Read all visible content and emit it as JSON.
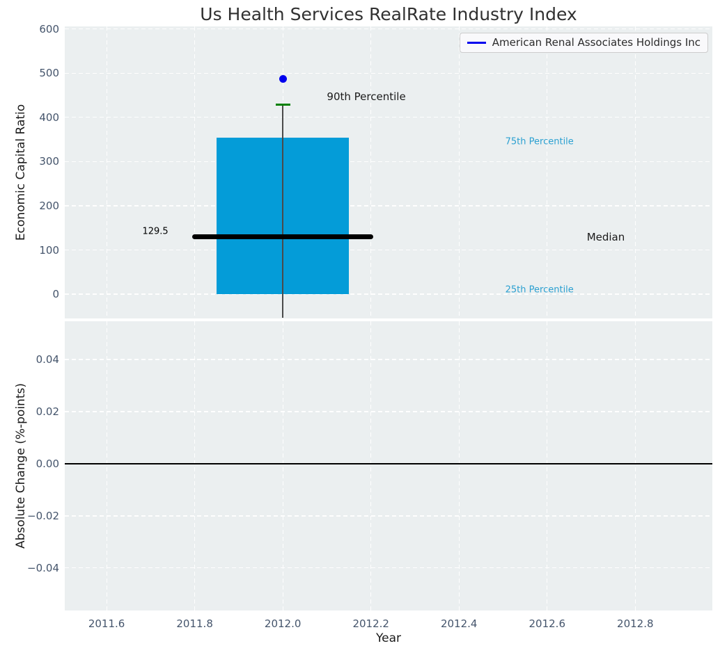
{
  "figure_title": "Us Health Services RealRate Industry Index",
  "colors": {
    "axes_bg": "#ebeff0",
    "grid": "rgba(255,255,255,0.95)",
    "tick_label": "#44546b",
    "title": "#303030",
    "bar": "#049cd8",
    "median_line": "#000000",
    "p90_marker": "#008000",
    "company_point": "#0000ee",
    "whisker": "#4a4a4a",
    "percentile_label": "#2ba0d1",
    "zero_line": "#000000",
    "legend_line": "#0000ee"
  },
  "chart_data": [
    {
      "type": "bar",
      "panel": "top",
      "title": "Us Health Services RealRate Industry Index",
      "ylabel": "Economic Capital Ratio",
      "xlim": [
        2011.505,
        2012.975
      ],
      "ylim": [
        -55,
        606
      ],
      "grid": true,
      "show_xtick_labels": false,
      "xticks": [
        {
          "value": 2011.6,
          "label": "2011.6"
        },
        {
          "value": 2011.8,
          "label": "2011.8"
        },
        {
          "value": 2012.0,
          "label": "2012.0"
        },
        {
          "value": 2012.2,
          "label": "2012.2"
        },
        {
          "value": 2012.4,
          "label": "2012.4"
        },
        {
          "value": 2012.6,
          "label": "2012.6"
        },
        {
          "value": 2012.8,
          "label": "2012.8"
        }
      ],
      "yticks": [
        {
          "value": 0,
          "label": "0"
        },
        {
          "value": 100,
          "label": "100"
        },
        {
          "value": 200,
          "label": "200"
        },
        {
          "value": 300,
          "label": "300"
        },
        {
          "value": 400,
          "label": "400"
        },
        {
          "value": 500,
          "label": "500"
        },
        {
          "value": 600,
          "label": "600"
        }
      ],
      "legend": {
        "label": "American Renal Associates Holdings Inc",
        "position": "upper right"
      },
      "box": {
        "x": 2012.0,
        "bar_width_years": 0.3,
        "whisker_low": -53,
        "p25": 0,
        "median": 129.5,
        "p75": 354,
        "p90": 429,
        "median_line_x1": 2011.795,
        "median_line_x2": 2012.205,
        "p90_dash_x1": 2011.9835,
        "p90_dash_x2": 2012.0165
      },
      "series": [
        {
          "name": "American Renal Associates Holdings Inc",
          "type": "scatter",
          "x": [
            2012.0
          ],
          "y": [
            487
          ]
        }
      ],
      "annotations": [
        {
          "text": "129.5",
          "x": 2011.74,
          "y": 142,
          "ha": "right",
          "size": 13,
          "color": "#000000"
        },
        {
          "text": "90th Percentile",
          "x": 2012.1,
          "y": 447,
          "ha": "left",
          "size": 15,
          "color": "#1a1a1a"
        },
        {
          "text": "Median",
          "x": 2012.69,
          "y": 129.5,
          "ha": "left",
          "size": 15,
          "color": "#1a1a1a"
        },
        {
          "text": "75th Percentile",
          "x": 2012.505,
          "y": 345,
          "ha": "left",
          "size": 13,
          "color": "#2ba0d1"
        },
        {
          "text": "25th Percentile",
          "x": 2012.505,
          "y": 9,
          "ha": "left",
          "size": 13,
          "color": "#2ba0d1"
        }
      ]
    },
    {
      "type": "line",
      "panel": "bottom",
      "ylabel": "Absolute Change (%-points)",
      "xlabel": "Year",
      "xlim": [
        2011.505,
        2012.975
      ],
      "ylim": [
        -0.0563,
        0.0547
      ],
      "grid": true,
      "show_xtick_labels": true,
      "xticks": [
        {
          "value": 2011.6,
          "label": "2011.6"
        },
        {
          "value": 2011.8,
          "label": "2011.8"
        },
        {
          "value": 2012.0,
          "label": "2012.0"
        },
        {
          "value": 2012.2,
          "label": "2012.2"
        },
        {
          "value": 2012.4,
          "label": "2012.4"
        },
        {
          "value": 2012.6,
          "label": "2012.6"
        },
        {
          "value": 2012.8,
          "label": "2012.8"
        }
      ],
      "yticks": [
        {
          "value": 0.04,
          "label": "0.04"
        },
        {
          "value": 0.02,
          "label": "0.02"
        },
        {
          "value": 0.0,
          "label": "0.00"
        },
        {
          "value": -0.02,
          "label": "−0.02"
        },
        {
          "value": -0.04,
          "label": "−0.04"
        }
      ],
      "zero_line": 0.0,
      "series": []
    }
  ]
}
